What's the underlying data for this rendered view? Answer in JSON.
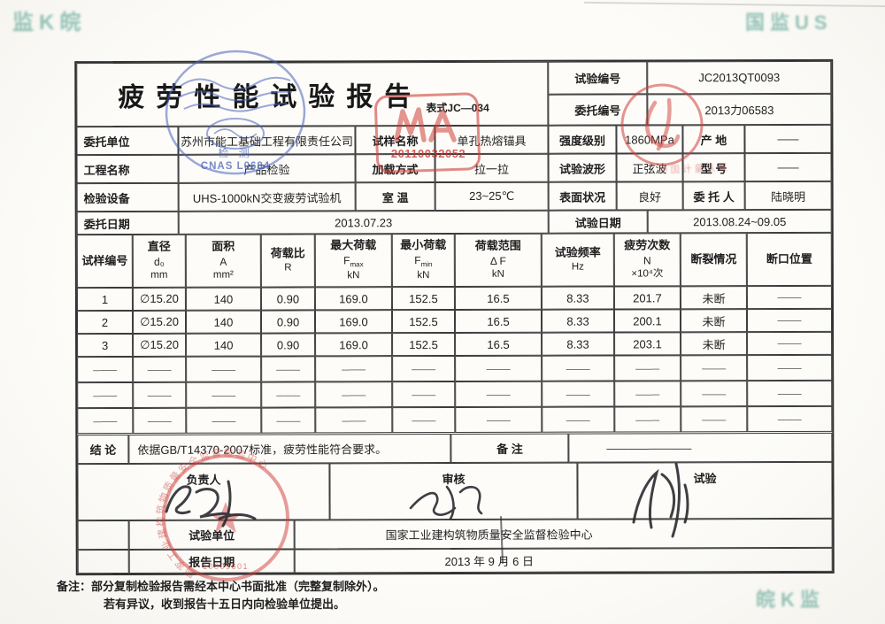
{
  "page": {
    "title": "疲劳性能试验报告",
    "form_code": "表式JC—034"
  },
  "header_right": {
    "test_no_label": "试验编号",
    "test_no_value": "JC2013QT0093",
    "client_no_label": "委托编号",
    "client_no_value": "2013力06583"
  },
  "info": {
    "r1c1_label": "委托单位",
    "r1c1_value": "苏州市能工基础工程有限责任公司",
    "r1c2_label": "试样名称",
    "r1c2_value": "单孔热熔锚具",
    "r1c3_label": "强度级别",
    "r1c3_value": "1860MPa",
    "r1c4_label": "产  地",
    "r1c4_value": "——",
    "r2c1_label": "工程名称",
    "r2c1_value": "产品检验",
    "r2c2_label": "加载方式",
    "r2c2_value": "拉一拉",
    "r2c3_label": "试验波形",
    "r2c3_value": "正弦波",
    "r2c4_label": "型  号",
    "r2c4_value": "——",
    "r3c1_label": "检验设备",
    "r3c1_value": "UHS-1000kN交变疲劳试验机",
    "r3c2_label": "室  温",
    "r3c2_value": "23~25℃",
    "r3c3_label": "表面状况",
    "r3c3_value": "良好",
    "r3c4_label": "委 托 人",
    "r3c4_value": "陆晓明",
    "r4c1_label": "委托日期",
    "r4c1_value": "2013.07.23",
    "r4c2_label": "试验日期",
    "r4c2_value": "2013.08.24~09.05"
  },
  "table": {
    "headers": [
      {
        "l1": "试样编号",
        "l2": "",
        "l2sub": "",
        "l3": ""
      },
      {
        "l1": "直径",
        "l2": "d₀",
        "l2sub": "",
        "l3": "mm"
      },
      {
        "l1": "面积",
        "l2": "A",
        "l2sub": "",
        "l3": "mm²"
      },
      {
        "l1": "荷载比",
        "l2": "",
        "l2sub": "",
        "l3": "R"
      },
      {
        "l1": "最大荷载",
        "l2": "F",
        "l2sub": "max",
        "l3": "kN"
      },
      {
        "l1": "最小荷载",
        "l2": "F",
        "l2sub": "min",
        "l3": "kN"
      },
      {
        "l1": "荷载范围",
        "l2": "Δ F",
        "l2sub": "",
        "l3": "kN"
      },
      {
        "l1": "试验频率",
        "l2": "",
        "l2sub": "",
        "l3": "Hz"
      },
      {
        "l1": "疲劳次数",
        "l2": "N",
        "l2sub": "",
        "l3": "×10⁴次"
      },
      {
        "l1": "断裂情况",
        "l2": "",
        "l2sub": "",
        "l3": ""
      },
      {
        "l1": "断口位置",
        "l2": "",
        "l2sub": "",
        "l3": ""
      }
    ],
    "rows": [
      [
        "1",
        "∅15.20",
        "140",
        "0.90",
        "169.0",
        "152.5",
        "16.5",
        "8.33",
        "201.7",
        "未断",
        "———"
      ],
      [
        "2",
        "∅15.20",
        "140",
        "0.90",
        "169.0",
        "152.5",
        "16.5",
        "8.33",
        "200.1",
        "未断",
        "———"
      ],
      [
        "3",
        "∅15.20",
        "140",
        "0.90",
        "169.0",
        "152.5",
        "16.5",
        "8.33",
        "203.1",
        "未断",
        "———"
      ],
      [
        "———",
        "———",
        "———",
        "———",
        "———",
        "———",
        "———",
        "———",
        "———",
        "———",
        "———"
      ],
      [
        "———",
        "———",
        "———",
        "———",
        "———",
        "———",
        "———",
        "———",
        "———",
        "———",
        "———"
      ],
      [
        "———",
        "———",
        "———",
        "———",
        "———",
        "———",
        "———",
        "———",
        "———",
        "———",
        "———"
      ]
    ]
  },
  "conclusion": {
    "label": "结  论",
    "text": "依据GB/T14370-2007标准，疲劳性能符合要求。",
    "remark_label": "备  注",
    "remark_value": "————————"
  },
  "signatures": {
    "lead_label": "负责人",
    "review_label": "审核",
    "test_label": "试验",
    "unit_label": "试验单位",
    "unit_value": "国家工业建构筑物质量安全监督检验中心",
    "date_label": "报告日期",
    "date_value": "2013 年  9  月  6  日"
  },
  "footer": {
    "line1": "备注：部分复制检验报告需经本中心书面批准（完整复制除外）。",
    "line2": "若有异议，收到报告十五日内向检验单位提出。"
  },
  "stamps": {
    "cnas_code": "CNAS L0684",
    "cnas_caption": "检  测",
    "cnas_color": "#4f63b5",
    "cma_number": "20110032052",
    "cma_color": "#d04a42",
    "red_note": "中国计量认证",
    "seal_text": "国家工业建构筑物质量安全监督检验中心",
    "seal_digits": "10009601",
    "corner_top_left": "监K皖",
    "corner_top_right": "国监US",
    "corner_bottom_right": "皖K监"
  }
}
